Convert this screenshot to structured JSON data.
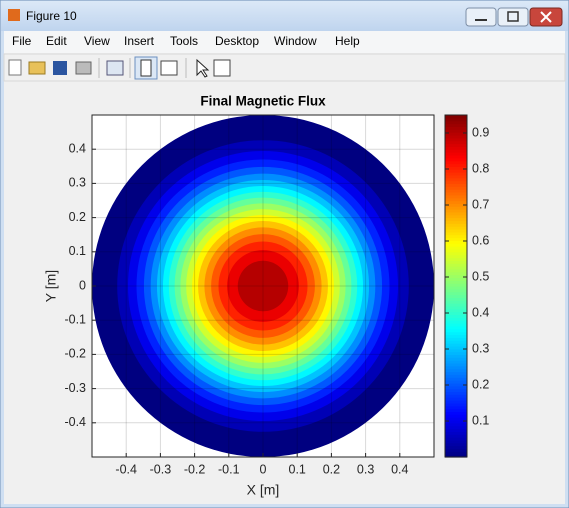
{
  "window": {
    "title": "Figure 10"
  },
  "menu": {
    "items": [
      "File",
      "Edit",
      "View",
      "Insert",
      "Tools",
      "Desktop",
      "Window",
      "Help"
    ]
  },
  "chart_data": {
    "type": "contour",
    "title": "Final Magnetic Flux",
    "x_label": "X [m]",
    "y_label": "Y [m]",
    "xlim": [
      -0.5,
      0.5
    ],
    "ylim": [
      -0.5,
      0.5
    ],
    "xticks": [
      -0.4,
      -0.3,
      -0.2,
      -0.1,
      0,
      0.1,
      0.2,
      0.3,
      0.4
    ],
    "yticks": [
      -0.4,
      -0.3,
      -0.2,
      -0.1,
      0,
      0.1,
      0.2,
      0.3,
      0.4
    ],
    "grid": true,
    "colormap": "jet",
    "clim": [
      0,
      0.95
    ],
    "cticks": [
      0.1,
      0.2,
      0.3,
      0.4,
      0.5,
      0.6,
      0.7,
      0.8,
      0.9
    ],
    "contours": {
      "levels": [
        0,
        0.05,
        0.1,
        0.15,
        0.2,
        0.25,
        0.3,
        0.35,
        0.4,
        0.45,
        0.5,
        0.55,
        0.6,
        0.65,
        0.7,
        0.75,
        0.8,
        0.85,
        0.9
      ],
      "radii": [
        0.5,
        0.4263,
        0.3948,
        0.3699,
        0.3482,
        0.3284,
        0.3101,
        0.2925,
        0.2753,
        0.2585,
        0.2416,
        0.2247,
        0.2075,
        0.1899,
        0.1713,
        0.1517,
        0.1302,
        0.1052,
        0.0738
      ]
    }
  }
}
